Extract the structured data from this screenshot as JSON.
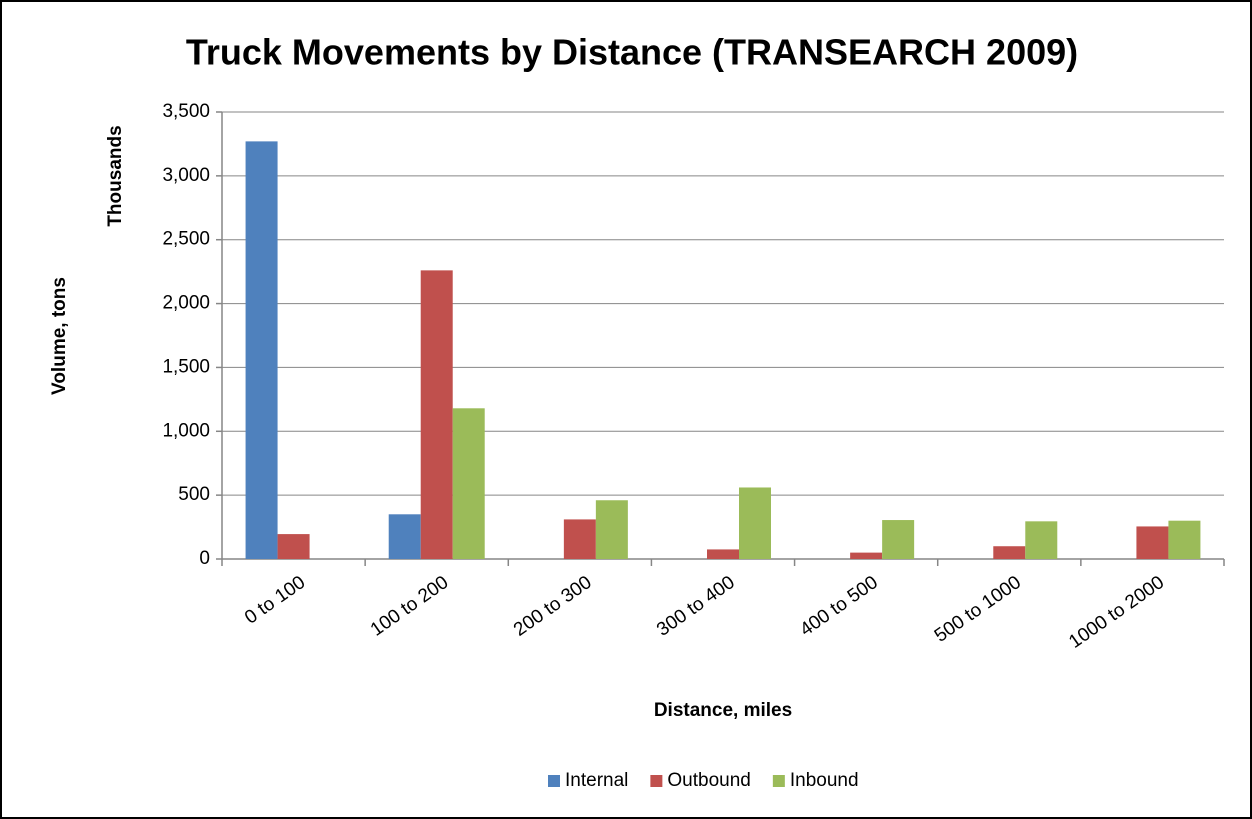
{
  "chart_data": {
    "type": "bar",
    "title": "Truck Movements by Distance (TRANSEARCH 2009)",
    "y_label": "Volume, tons",
    "y_unit_label": "Thousands",
    "x_label": "Distance, miles",
    "categories": [
      "0 to 100",
      "100 to 200",
      "200 to 300",
      "300 to 400",
      "400 to 500",
      "500 to 1000",
      "1000 to 2000"
    ],
    "series": [
      {
        "name": "Internal",
        "color": "#4f81bd",
        "values": [
          3270,
          350,
          0,
          0,
          0,
          0,
          0
        ]
      },
      {
        "name": "Outbound",
        "color": "#c0504d",
        "values": [
          195,
          2260,
          310,
          75,
          50,
          100,
          255
        ]
      },
      {
        "name": "Inbound",
        "color": "#9bbb59",
        "values": [
          0,
          1180,
          460,
          560,
          305,
          295,
          300
        ]
      }
    ],
    "ylim": [
      0,
      3500
    ],
    "yticks": [
      0,
      500,
      {
        "value": 1000,
        "label": "1,000"
      },
      {
        "value": 1500,
        "label": "1,500"
      },
      {
        "value": 2000,
        "label": "2,000"
      },
      {
        "value": 2500,
        "label": "2,500"
      },
      {
        "value": 3000,
        "label": "3,000"
      },
      {
        "value": 3500,
        "label": "3,500"
      }
    ],
    "grid": true,
    "legend": "bottom"
  }
}
